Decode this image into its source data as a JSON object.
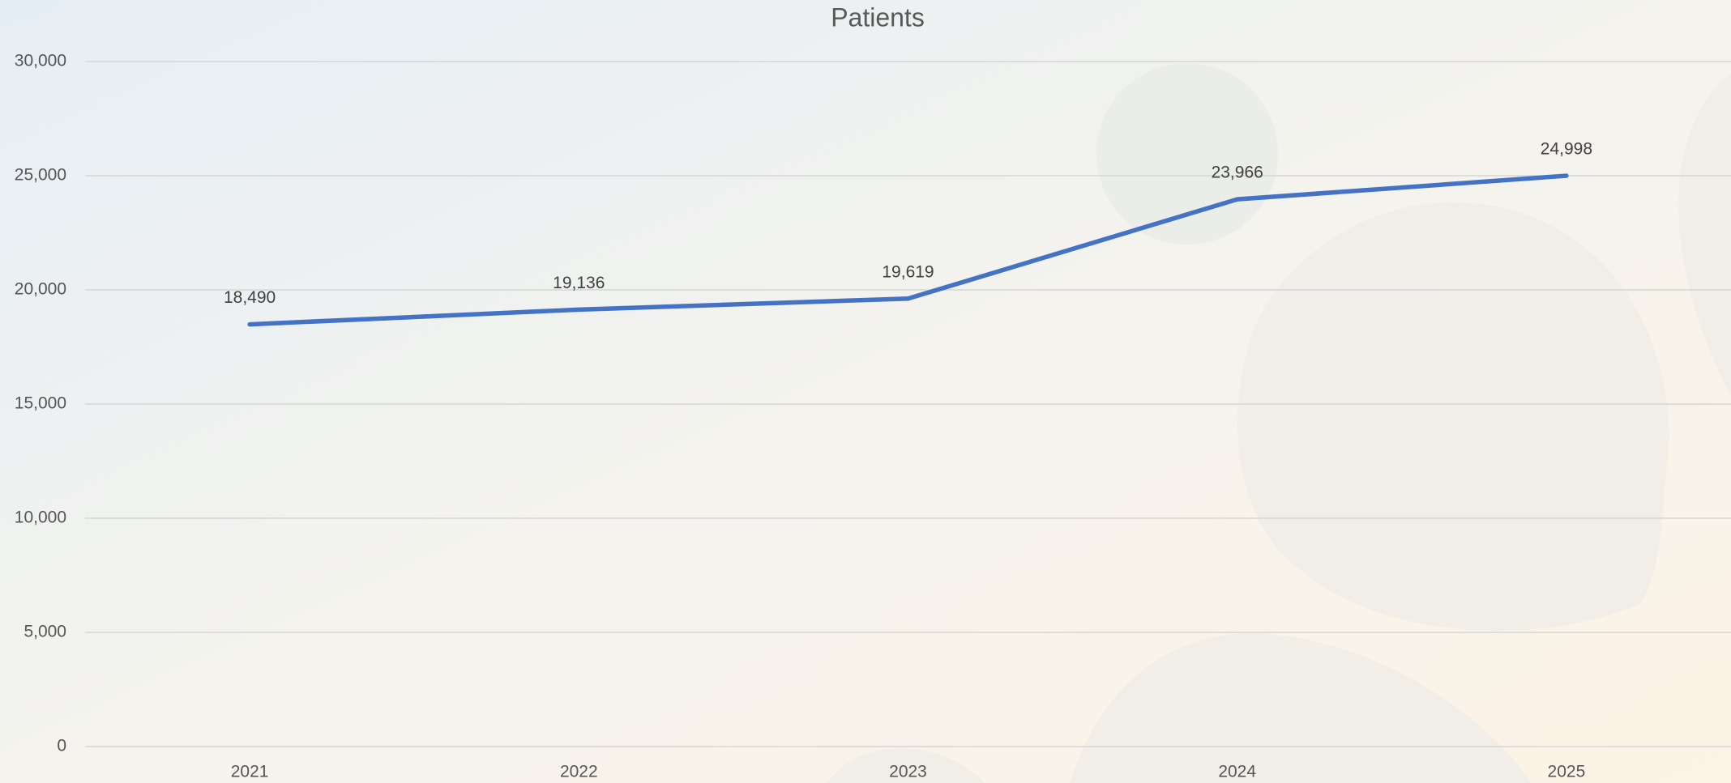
{
  "chart_data": {
    "type": "line",
    "title": "Patients",
    "categories": [
      "2021",
      "2022",
      "2023",
      "2024",
      "2025"
    ],
    "series": [
      {
        "name": "Patients",
        "color": "#4472c4",
        "values": [
          18490,
          19136,
          19619,
          23966,
          24998
        ],
        "value_labels": [
          "18,490",
          "19,136",
          "19,619",
          "23,966",
          "24,998"
        ]
      }
    ],
    "ylim": [
      0,
      30000
    ],
    "yticks": [
      0,
      {
        "value": 5000,
        "label": "5,000"
      },
      {
        "value": 10000,
        "label": "10,000"
      },
      {
        "value": 15000,
        "label": "15,000"
      },
      {
        "value": 20000,
        "label": "20,000"
      },
      {
        "value": 25000,
        "label": "25,000"
      },
      {
        "value": 30000,
        "label": "30,000"
      }
    ],
    "grid": true
  }
}
